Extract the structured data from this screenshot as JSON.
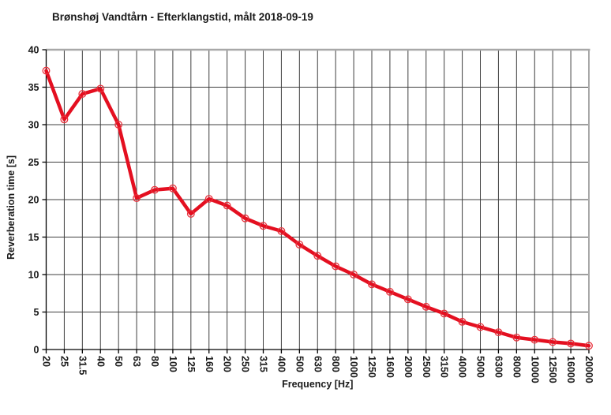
{
  "chart_data": {
    "type": "line",
    "title": "Brønshøj Vandtårn - Efterklangstid, målt 2018-09-19",
    "xlabel": "Frequency [Hz]",
    "ylabel": "Reverberation time [s]",
    "categories": [
      "20",
      "25",
      "31.5",
      "40",
      "50",
      "63",
      "80",
      "100",
      "125",
      "160",
      "200",
      "250",
      "315",
      "400",
      "500",
      "630",
      "800",
      "1000",
      "1250",
      "1600",
      "2000",
      "2500",
      "3150",
      "4000",
      "5000",
      "6300",
      "8000",
      "10000",
      "12500",
      "16000",
      "20000"
    ],
    "values": [
      37.2,
      30.7,
      34.1,
      34.8,
      30.0,
      20.2,
      21.3,
      21.5,
      18.1,
      20.1,
      19.2,
      17.5,
      16.5,
      15.8,
      14.0,
      12.5,
      11.1,
      10.0,
      8.7,
      7.7,
      6.7,
      5.7,
      4.8,
      3.7,
      3.0,
      2.3,
      1.6,
      1.3,
      1.0,
      0.8,
      0.5
    ],
    "ylim": [
      0,
      40
    ],
    "ytick_step": 5,
    "ytick_labels": [
      "0",
      "5",
      "10",
      "15",
      "20",
      "25",
      "30",
      "35",
      "40"
    ],
    "grid": "major-horizontal-and-vertical",
    "legend_position": "none",
    "marker": "open-circle",
    "colors": {
      "line": "#e40f20",
      "marker_stroke": "#e8323c",
      "gridline": "#3f3f3f",
      "axis": "#000000",
      "plot_border_gray": "#a8a8a8",
      "text": "#1a1a1a",
      "background": "#ffffff"
    }
  }
}
